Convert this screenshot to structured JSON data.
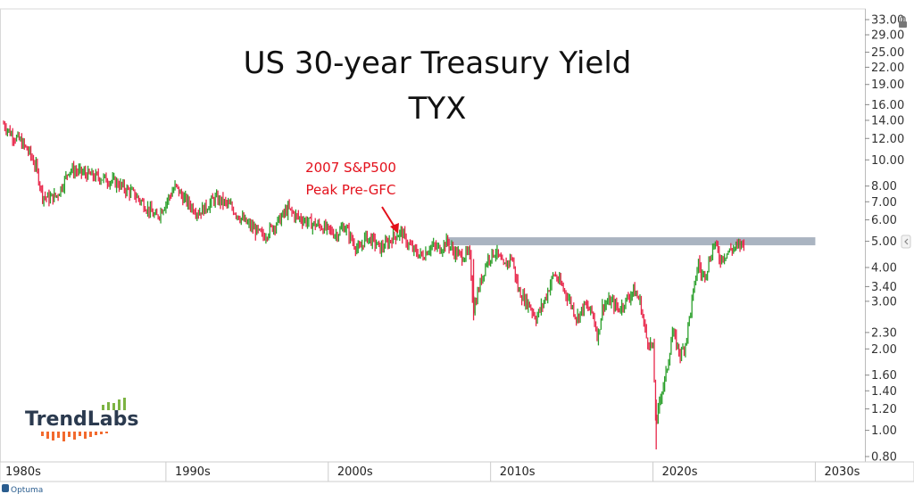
{
  "chart_data": {
    "type": "candlestick",
    "title": "US 30-year Treasury Yield",
    "subtitle": "TYX",
    "scale": "log",
    "ylim": [
      0.8,
      33.0
    ],
    "y_ticks": [
      "33.00",
      "29.00",
      "25.00",
      "22.00",
      "19.00",
      "16.00",
      "14.00",
      "12.00",
      "10.00",
      "8.00",
      "7.00",
      "6.00",
      "5.00",
      "4.00",
      "3.40",
      "3.00",
      "2.30",
      "2.00",
      "1.60",
      "1.40",
      "1.20",
      "1.00",
      "0.80"
    ],
    "x_ticks": [
      "1980s",
      "1990s",
      "2000s",
      "2010s",
      "2020s",
      "2030s"
    ],
    "xlim": [
      1980,
      2033
    ],
    "series": [
      {
        "values": [
          [
            1980.0,
            13.6
          ],
          [
            1980.5,
            12.4
          ],
          [
            1981.0,
            11.8
          ],
          [
            1981.6,
            10.6
          ],
          [
            1982.0,
            9.4
          ],
          [
            1982.4,
            7.4
          ],
          [
            1982.8,
            7.2
          ],
          [
            1983.3,
            7.4
          ],
          [
            1983.8,
            8.5
          ],
          [
            1984.0,
            9.2
          ],
          [
            1984.5,
            9.1
          ],
          [
            1985.0,
            8.9
          ],
          [
            1985.5,
            8.7
          ],
          [
            1986.0,
            8.6
          ],
          [
            1986.5,
            8.4
          ],
          [
            1987.0,
            8.2
          ],
          [
            1987.5,
            7.8
          ],
          [
            1988.0,
            7.5
          ],
          [
            1988.5,
            7.0
          ],
          [
            1989.0,
            6.5
          ],
          [
            1989.4,
            6.1
          ],
          [
            1989.7,
            6.5
          ],
          [
            1990.2,
            7.3
          ],
          [
            1990.6,
            8.0
          ],
          [
            1991.0,
            7.3
          ],
          [
            1991.5,
            6.8
          ],
          [
            1992.0,
            6.4
          ],
          [
            1992.5,
            6.7
          ],
          [
            1993.0,
            7.2
          ],
          [
            1993.5,
            7.0
          ],
          [
            1994.0,
            6.7
          ],
          [
            1994.5,
            6.2
          ],
          [
            1995.0,
            5.8
          ],
          [
            1995.5,
            5.5
          ],
          [
            1996.0,
            5.2
          ],
          [
            1996.5,
            5.6
          ],
          [
            1997.0,
            6.0
          ],
          [
            1997.5,
            6.6
          ],
          [
            1998.0,
            6.2
          ],
          [
            1998.5,
            6.0
          ],
          [
            1999.0,
            5.8
          ],
          [
            1999.5,
            5.7
          ],
          [
            2000.0,
            5.5
          ],
          [
            2000.5,
            5.3
          ],
          [
            2001.0,
            5.7
          ],
          [
            2001.5,
            5.0
          ],
          [
            2001.9,
            4.6
          ],
          [
            2002.3,
            5.2
          ],
          [
            2002.8,
            5.0
          ],
          [
            2003.2,
            4.7
          ],
          [
            2003.6,
            4.9
          ],
          [
            2004.0,
            5.2
          ],
          [
            2004.5,
            5.4
          ],
          [
            2004.9,
            4.9
          ],
          [
            2005.3,
            4.6
          ],
          [
            2005.8,
            4.4
          ],
          [
            2006.3,
            4.8
          ],
          [
            2006.9,
            4.7
          ],
          [
            2007.3,
            5.0
          ],
          [
            2007.7,
            4.6
          ],
          [
            2008.2,
            4.4
          ],
          [
            2008.7,
            4.5
          ],
          [
            2008.95,
            2.8
          ],
          [
            2009.3,
            3.4
          ],
          [
            2009.8,
            4.3
          ],
          [
            2010.3,
            4.6
          ],
          [
            2010.8,
            4.0
          ],
          [
            2011.3,
            4.4
          ],
          [
            2011.7,
            3.3
          ],
          [
            2012.0,
            3.1
          ],
          [
            2012.4,
            2.9
          ],
          [
            2012.8,
            2.6
          ],
          [
            2013.3,
            3.0
          ],
          [
            2013.9,
            3.8
          ],
          [
            2014.4,
            3.4
          ],
          [
            2014.9,
            3.0
          ],
          [
            2015.3,
            2.6
          ],
          [
            2015.8,
            2.9
          ],
          [
            2016.3,
            2.7
          ],
          [
            2016.6,
            2.2
          ],
          [
            2016.9,
            2.9
          ],
          [
            2017.4,
            3.0
          ],
          [
            2017.9,
            2.8
          ],
          [
            2018.3,
            3.0
          ],
          [
            2018.8,
            3.3
          ],
          [
            2019.2,
            3.0
          ],
          [
            2019.6,
            2.2
          ],
          [
            2020.0,
            2.0
          ],
          [
            2020.2,
            1.0
          ],
          [
            2020.4,
            1.3
          ],
          [
            2020.8,
            1.6
          ],
          [
            2021.2,
            2.3
          ],
          [
            2021.7,
            1.9
          ],
          [
            2022.0,
            2.1
          ],
          [
            2022.4,
            3.0
          ],
          [
            2022.8,
            4.2
          ],
          [
            2023.0,
            3.7
          ],
          [
            2023.3,
            3.9
          ],
          [
            2023.8,
            5.0
          ],
          [
            2024.1,
            4.3
          ],
          [
            2024.5,
            4.5
          ],
          [
            2024.9,
            4.7
          ],
          [
            2025.3,
            4.8
          ],
          [
            2025.6,
            5.0
          ]
        ]
      }
    ],
    "annotation": {
      "lines": [
        "2007 S&P500",
        "Peak Pre-GFC"
      ],
      "at_year": 2007.0,
      "at_value": 5.1
    },
    "horizontal_band": {
      "value": 5.0,
      "from_year": 2007.3,
      "to_year": 2030.0,
      "color": "#aab4c1"
    },
    "colors": {
      "up": "#2ca02c",
      "down": "#e8264a",
      "band": "#aab4c1",
      "annotation": "#e3101b"
    }
  },
  "logo": {
    "text": "TrendLabs"
  },
  "footer": {
    "brand": "Optuma"
  }
}
